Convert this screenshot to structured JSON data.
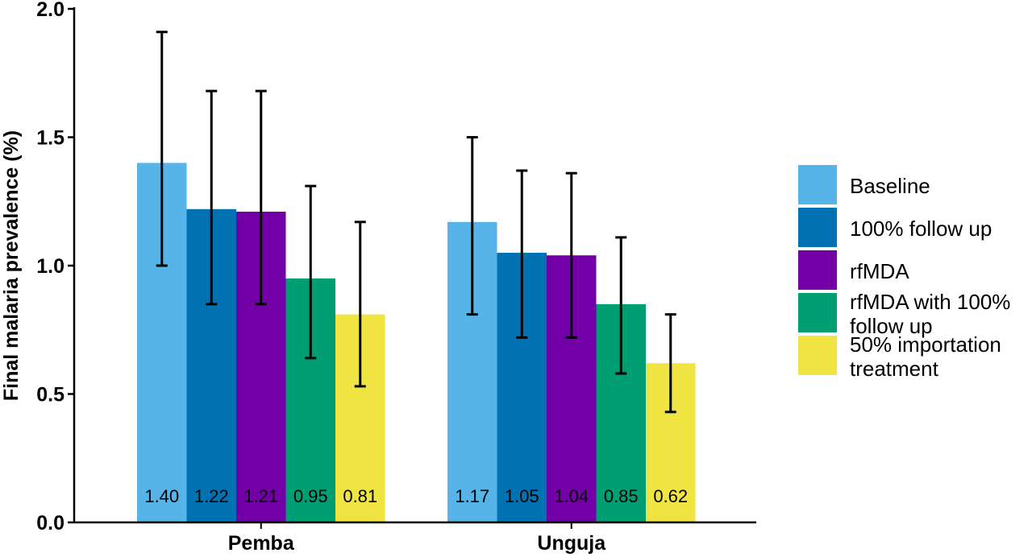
{
  "chart_data": {
    "type": "bar",
    "title": "",
    "xlabel": "",
    "ylabel": "Final malaria prevalence (%)",
    "ylim": [
      0,
      2.0
    ],
    "yticks": [
      "0.0",
      "0.5",
      "1.0",
      "1.5",
      "2.0"
    ],
    "grid": false,
    "legend_position": "right",
    "categories": [
      "Pemba",
      "Unguja"
    ],
    "series": [
      {
        "name": "Baseline",
        "color": "#56B4E9",
        "values": [
          1.4,
          1.17
        ],
        "labels": [
          "1.40",
          "1.17"
        ],
        "err_low": [
          1.0,
          0.81
        ],
        "err_high": [
          1.91,
          1.5
        ]
      },
      {
        "name": "100% follow up",
        "color": "#0072B2",
        "values": [
          1.22,
          1.05
        ],
        "labels": [
          "1.22",
          "1.05"
        ],
        "err_low": [
          0.85,
          0.72
        ],
        "err_high": [
          1.68,
          1.37
        ]
      },
      {
        "name": "rfMDA",
        "color": "#7300A6",
        "values": [
          1.21,
          1.04
        ],
        "labels": [
          "1.21",
          "1.04"
        ],
        "err_low": [
          0.85,
          0.72
        ],
        "err_high": [
          1.68,
          1.36
        ]
      },
      {
        "name": "rfMDA with 100% follow up",
        "color": "#009E73",
        "values": [
          0.95,
          0.85
        ],
        "labels": [
          "0.95",
          "0.85"
        ],
        "err_low": [
          0.64,
          0.58
        ],
        "err_high": [
          1.31,
          1.11
        ]
      },
      {
        "name": "50% importation treatment",
        "color": "#F0E442",
        "values": [
          0.81,
          0.62
        ],
        "labels": [
          "0.81",
          "0.62"
        ],
        "err_low": [
          0.53,
          0.43
        ],
        "err_high": [
          1.17,
          0.81
        ]
      }
    ]
  }
}
